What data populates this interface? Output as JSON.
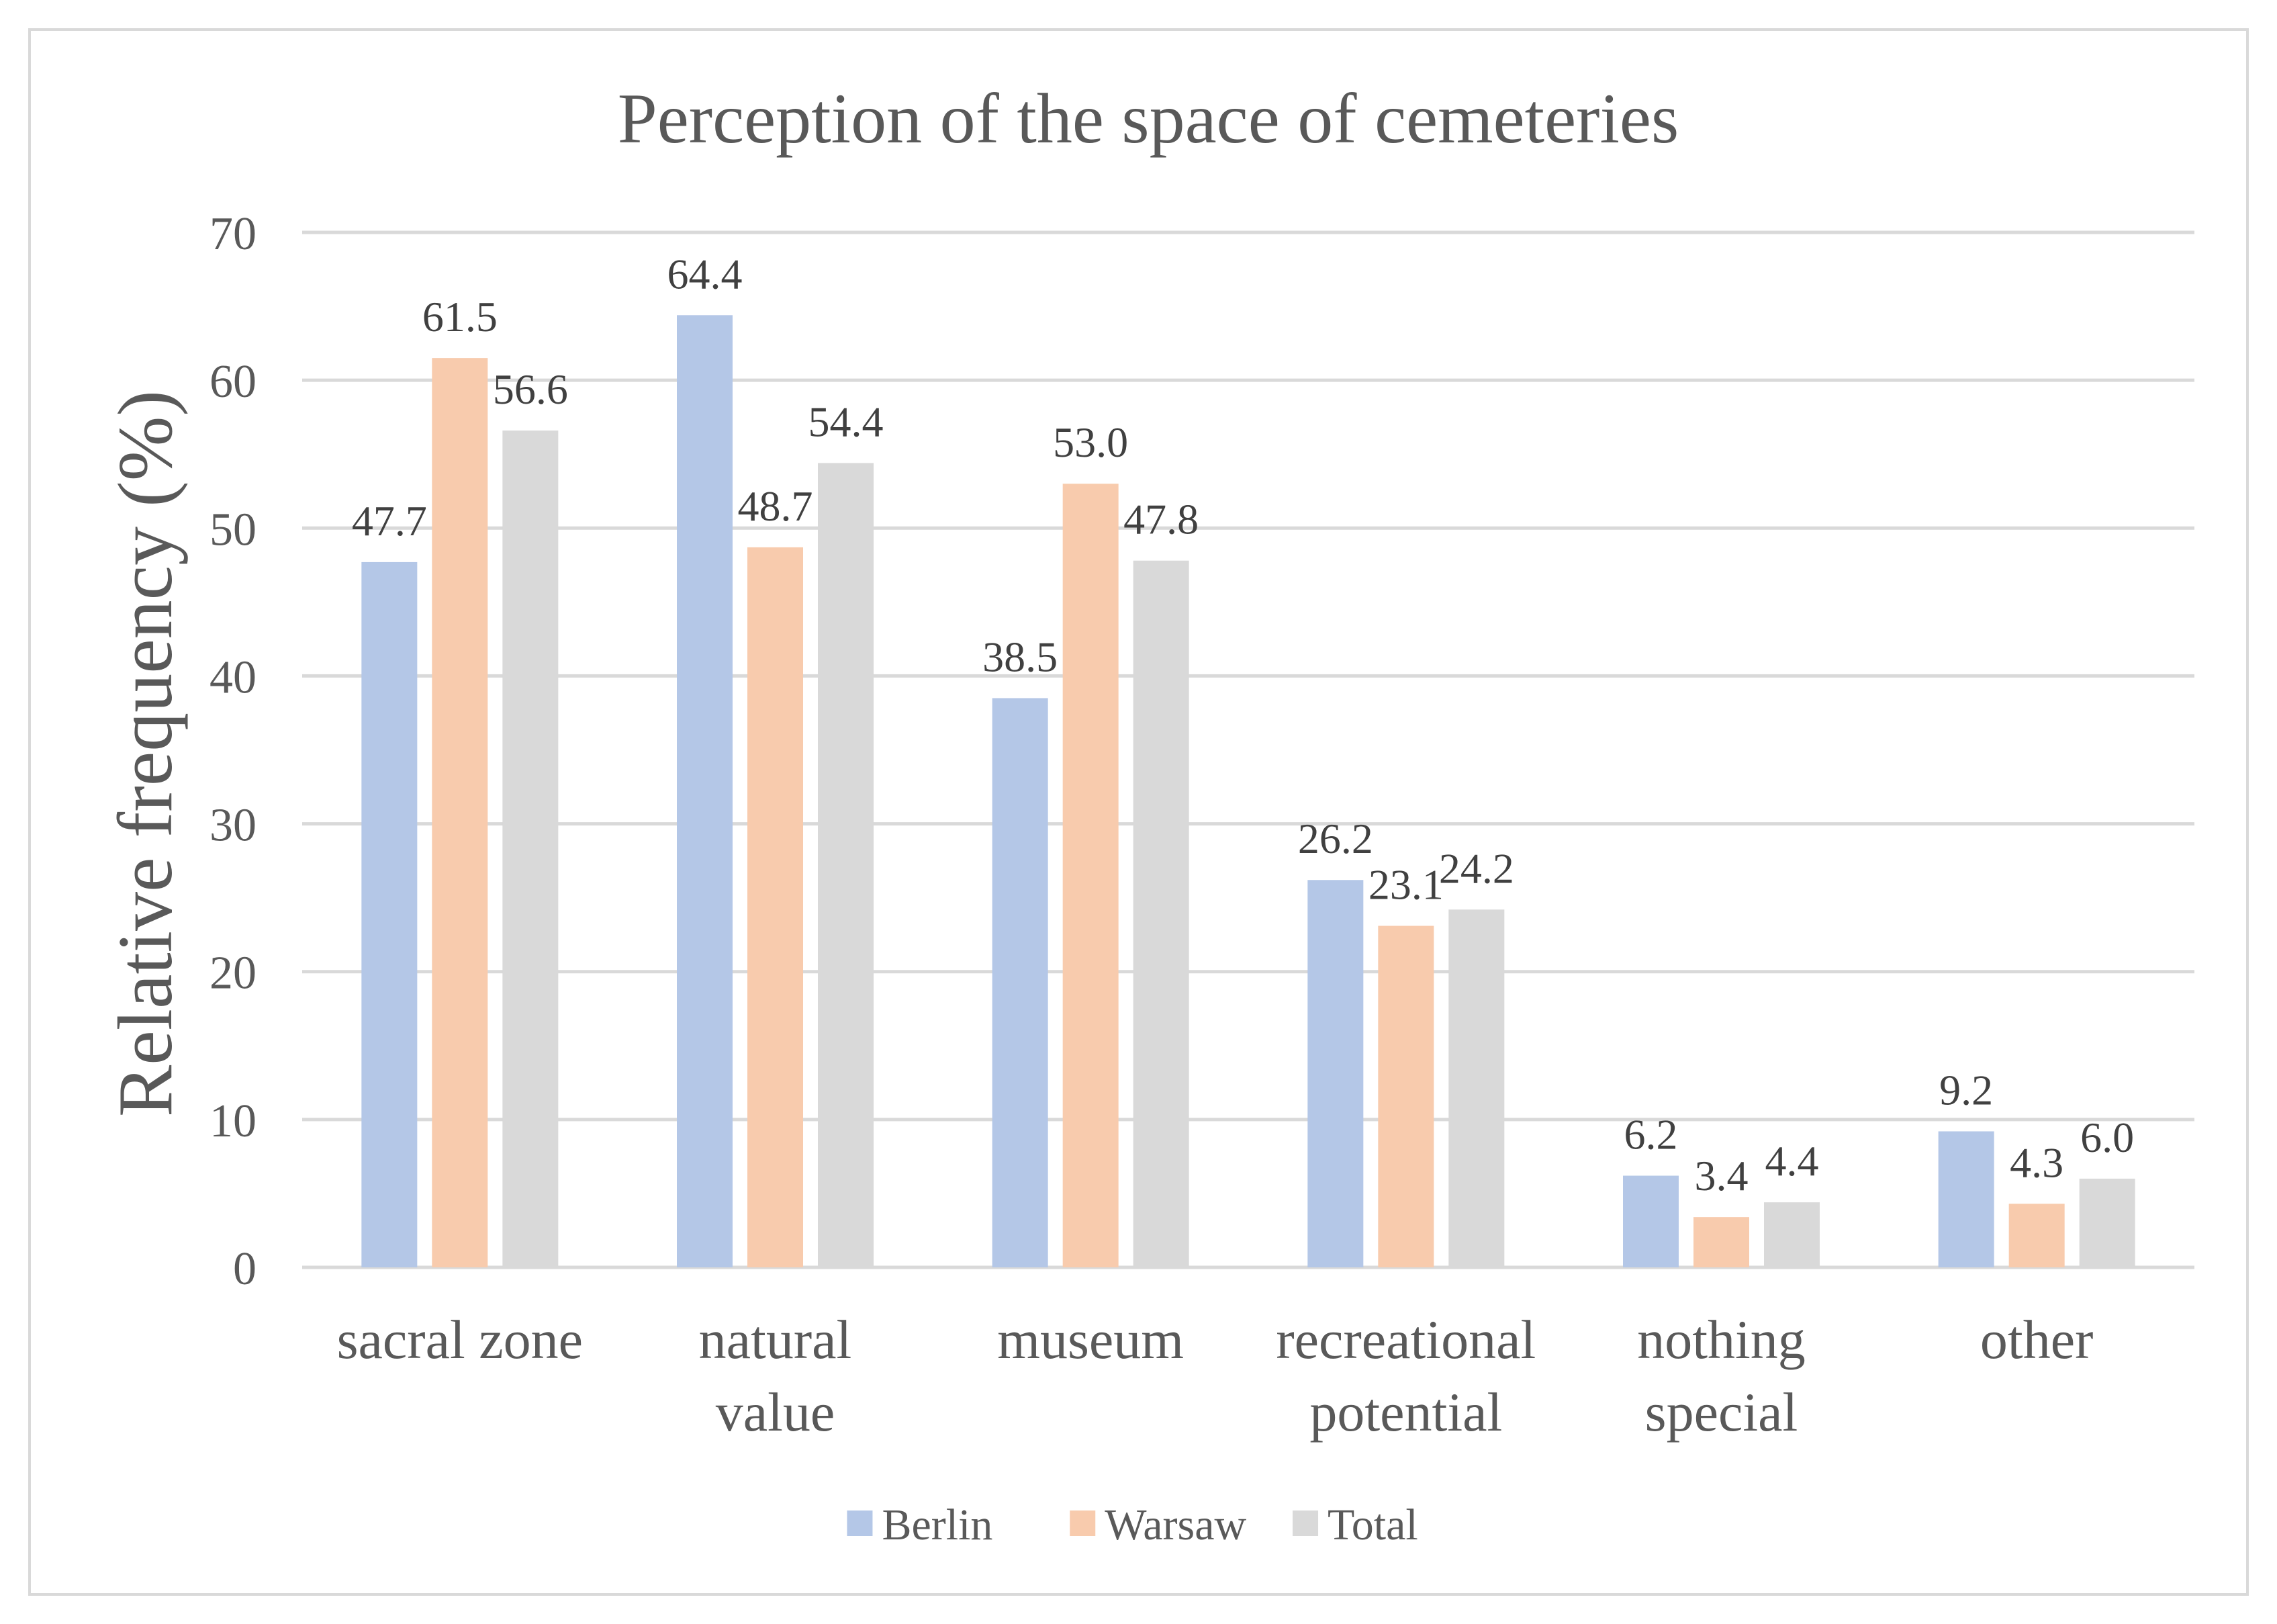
{
  "chart_data": {
    "type": "bar",
    "title": "Perception of the space of cemeteries",
    "xlabel": "",
    "ylabel": "Relative frequency (%)",
    "ylim": [
      0,
      70
    ],
    "yticks": [
      0,
      10,
      20,
      30,
      40,
      50,
      60,
      70
    ],
    "grid": true,
    "legend_position": "bottom",
    "categories": [
      [
        "sacral zone"
      ],
      [
        "natural",
        "value"
      ],
      [
        "museum"
      ],
      [
        "recreational",
        "potential"
      ],
      [
        "nothing",
        "special"
      ],
      [
        "other"
      ]
    ],
    "series": [
      {
        "name": "Berlin",
        "color": "#b4c7e7",
        "values": [
          47.7,
          64.4,
          38.5,
          26.2,
          6.2,
          9.2
        ]
      },
      {
        "name": "Warsaw",
        "color": "#f8cbad",
        "values": [
          61.5,
          48.7,
          53.0,
          23.1,
          3.4,
          4.3
        ]
      },
      {
        "name": "Total",
        "color": "#d9d9d9",
        "values": [
          56.6,
          54.4,
          47.8,
          24.2,
          4.4,
          6.0
        ]
      }
    ],
    "data_labels": [
      [
        "47.7",
        "64.4",
        "38.5",
        "26.2",
        "6.2",
        "9.2"
      ],
      [
        "61.5",
        "48.7",
        "53.0",
        "23.1",
        "3.4",
        "4.3"
      ],
      [
        "56.6",
        "54.4",
        "47.8",
        "24.2",
        "4.4",
        "6.0"
      ]
    ],
    "text_color": "#595959",
    "label_color": "#404040",
    "grid_color": "#d9d9d9"
  }
}
